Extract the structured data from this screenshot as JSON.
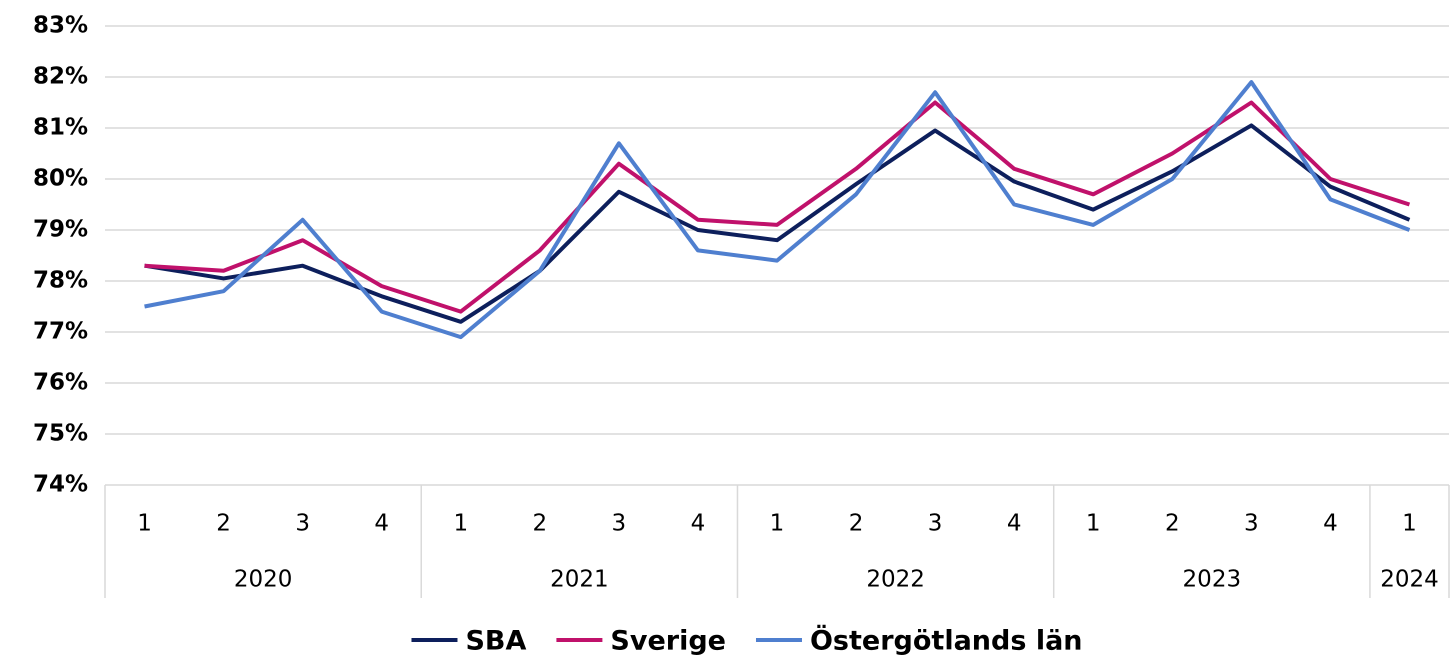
{
  "chart_data": {
    "type": "line",
    "year_groups": [
      {
        "label": "2020",
        "categories": [
          "1",
          "2",
          "3",
          "4"
        ]
      },
      {
        "label": "2021",
        "categories": [
          "1",
          "2",
          "3",
          "4"
        ]
      },
      {
        "label": "2022",
        "categories": [
          "1",
          "2",
          "3",
          "4"
        ]
      },
      {
        "label": "2023",
        "categories": [
          "1",
          "2",
          "3",
          "4"
        ]
      },
      {
        "label": "2024",
        "categories": [
          "1"
        ]
      }
    ],
    "series": [
      {
        "name": "SBA",
        "color": "#0d1f5c",
        "values": [
          78.3,
          78.05,
          78.3,
          77.7,
          77.2,
          78.2,
          79.75,
          79.0,
          78.8,
          79.9,
          80.95,
          79.95,
          79.4,
          80.15,
          81.05,
          79.85,
          79.2
        ]
      },
      {
        "name": "Sverige",
        "color": "#c0116b",
        "values": [
          78.3,
          78.2,
          78.8,
          77.9,
          77.4,
          78.6,
          80.3,
          79.2,
          79.1,
          80.2,
          81.5,
          80.2,
          79.7,
          80.5,
          81.5,
          80.0,
          79.5
        ]
      },
      {
        "name": "Östergötlands län",
        "color": "#4f7fcf",
        "values": [
          77.5,
          77.8,
          79.2,
          77.4,
          76.9,
          78.2,
          80.7,
          78.6,
          78.4,
          79.7,
          81.7,
          79.5,
          79.1,
          80.0,
          81.9,
          79.6,
          79.0
        ]
      }
    ],
    "ylim": [
      74,
      83
    ],
    "yticks": [
      {
        "value": 74,
        "label": "74%"
      },
      {
        "value": 75,
        "label": "75%"
      },
      {
        "value": 76,
        "label": "76%"
      },
      {
        "value": 77,
        "label": "77%"
      },
      {
        "value": 78,
        "label": "78%"
      },
      {
        "value": 79,
        "label": "79%"
      },
      {
        "value": 80,
        "label": "80%"
      },
      {
        "value": 81,
        "label": "81%"
      },
      {
        "value": 82,
        "label": "82%"
      },
      {
        "value": 83,
        "label": "83%"
      }
    ],
    "grid": true,
    "legend": "bottom"
  }
}
